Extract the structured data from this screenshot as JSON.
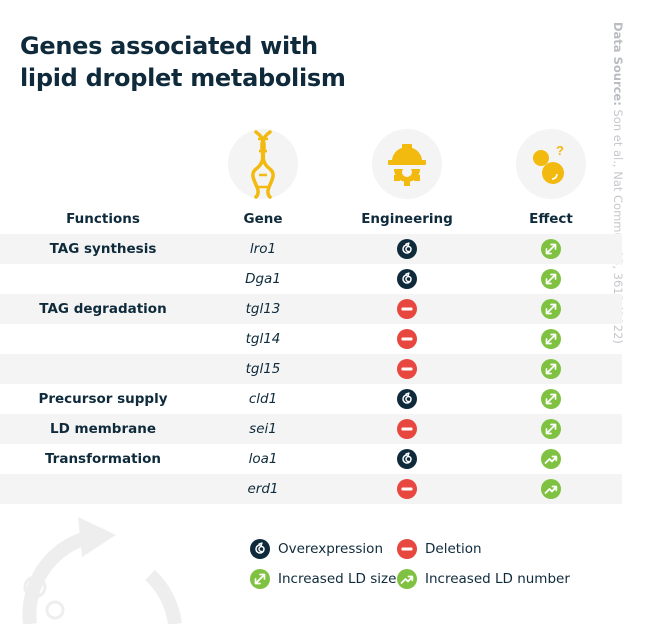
{
  "title": [
    "Genes associated with",
    "lipid droplet metabolism"
  ],
  "source": {
    "label": "Data Source:",
    "text": " Son et al., Nat Commun 13, 3612 (2022)"
  },
  "columns": {
    "functions": "Functions",
    "gene": "Gene",
    "engineering": "Engineering",
    "effect": "Effect"
  },
  "column_icons": [
    "dna-icon",
    "engineering-helmet-gear-icon",
    "droplets-question-icon"
  ],
  "rows": [
    {
      "function": "TAG synthesis",
      "gene": "lro1",
      "engineering": "overexpression",
      "effect": "size"
    },
    {
      "function": "",
      "gene": "Dga1",
      "engineering": "overexpression",
      "effect": "size"
    },
    {
      "function": "TAG degradation",
      "gene": "tgl13",
      "engineering": "deletion",
      "effect": "size"
    },
    {
      "function": "",
      "gene": "tgl14",
      "engineering": "deletion",
      "effect": "size"
    },
    {
      "function": "",
      "gene": "tgl15",
      "engineering": "deletion",
      "effect": "size"
    },
    {
      "function": "Precursor supply",
      "gene": "cld1",
      "engineering": "overexpression",
      "effect": "size"
    },
    {
      "function": "LD membrane",
      "gene": "sei1",
      "engineering": "deletion",
      "effect": "size"
    },
    {
      "function": "Transformation",
      "gene": "loa1",
      "engineering": "overexpression",
      "effect": "number"
    },
    {
      "function": "",
      "gene": "erd1",
      "engineering": "deletion",
      "effect": "number"
    }
  ],
  "legend": {
    "overexpression": "Overexpression",
    "deletion": "Deletion",
    "size": "Increased LD size",
    "number": "Increased LD number"
  },
  "colors": {
    "navy": "#0e2a3b",
    "red": "#e8473f",
    "green": "#7fc241",
    "yellow": "#f2b90f",
    "row_shade": "#f4f4f4",
    "source_text": "#c6c8cc"
  }
}
